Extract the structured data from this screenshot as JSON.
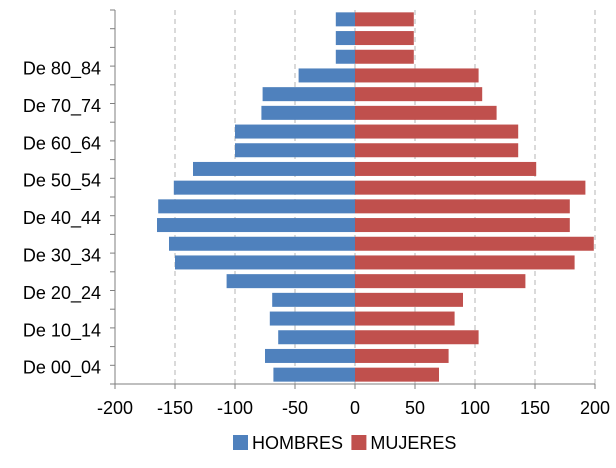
{
  "chart_data": {
    "type": "bar",
    "orientation": "horizontal",
    "categories": [
      "De 00_04",
      "",
      "De 10_14",
      "",
      "De 20_24",
      "",
      "De 30_34",
      "",
      "De 40_44",
      "",
      "De 50_54",
      "",
      "De 60_64",
      "",
      "De 70_74",
      "",
      "De 80_84",
      "",
      "",
      ""
    ],
    "series": [
      {
        "name": "HOMBRES",
        "color": "#4F81BD",
        "values": [
          -68,
          -75,
          -64,
          -71,
          -69,
          -107,
          -150,
          -155,
          -165,
          -164,
          -151,
          -135,
          -100,
          -100,
          -78,
          -77,
          -47,
          -16,
          -16,
          -16
        ]
      },
      {
        "name": "MUJERES",
        "color": "#C0504D",
        "values": [
          70,
          78,
          103,
          83,
          90,
          142,
          183,
          199,
          179,
          179,
          192,
          151,
          136,
          136,
          118,
          106,
          103,
          49,
          49,
          49
        ]
      }
    ],
    "xlim": [
      -200,
      200
    ],
    "xticks": [
      "-200",
      "-150",
      "-100",
      "-50",
      "0",
      "50",
      "100",
      "150",
      "200"
    ],
    "grid": "vertical-dashed",
    "legend": "bottom",
    "title": "",
    "xlabel": "",
    "ylabel": ""
  }
}
